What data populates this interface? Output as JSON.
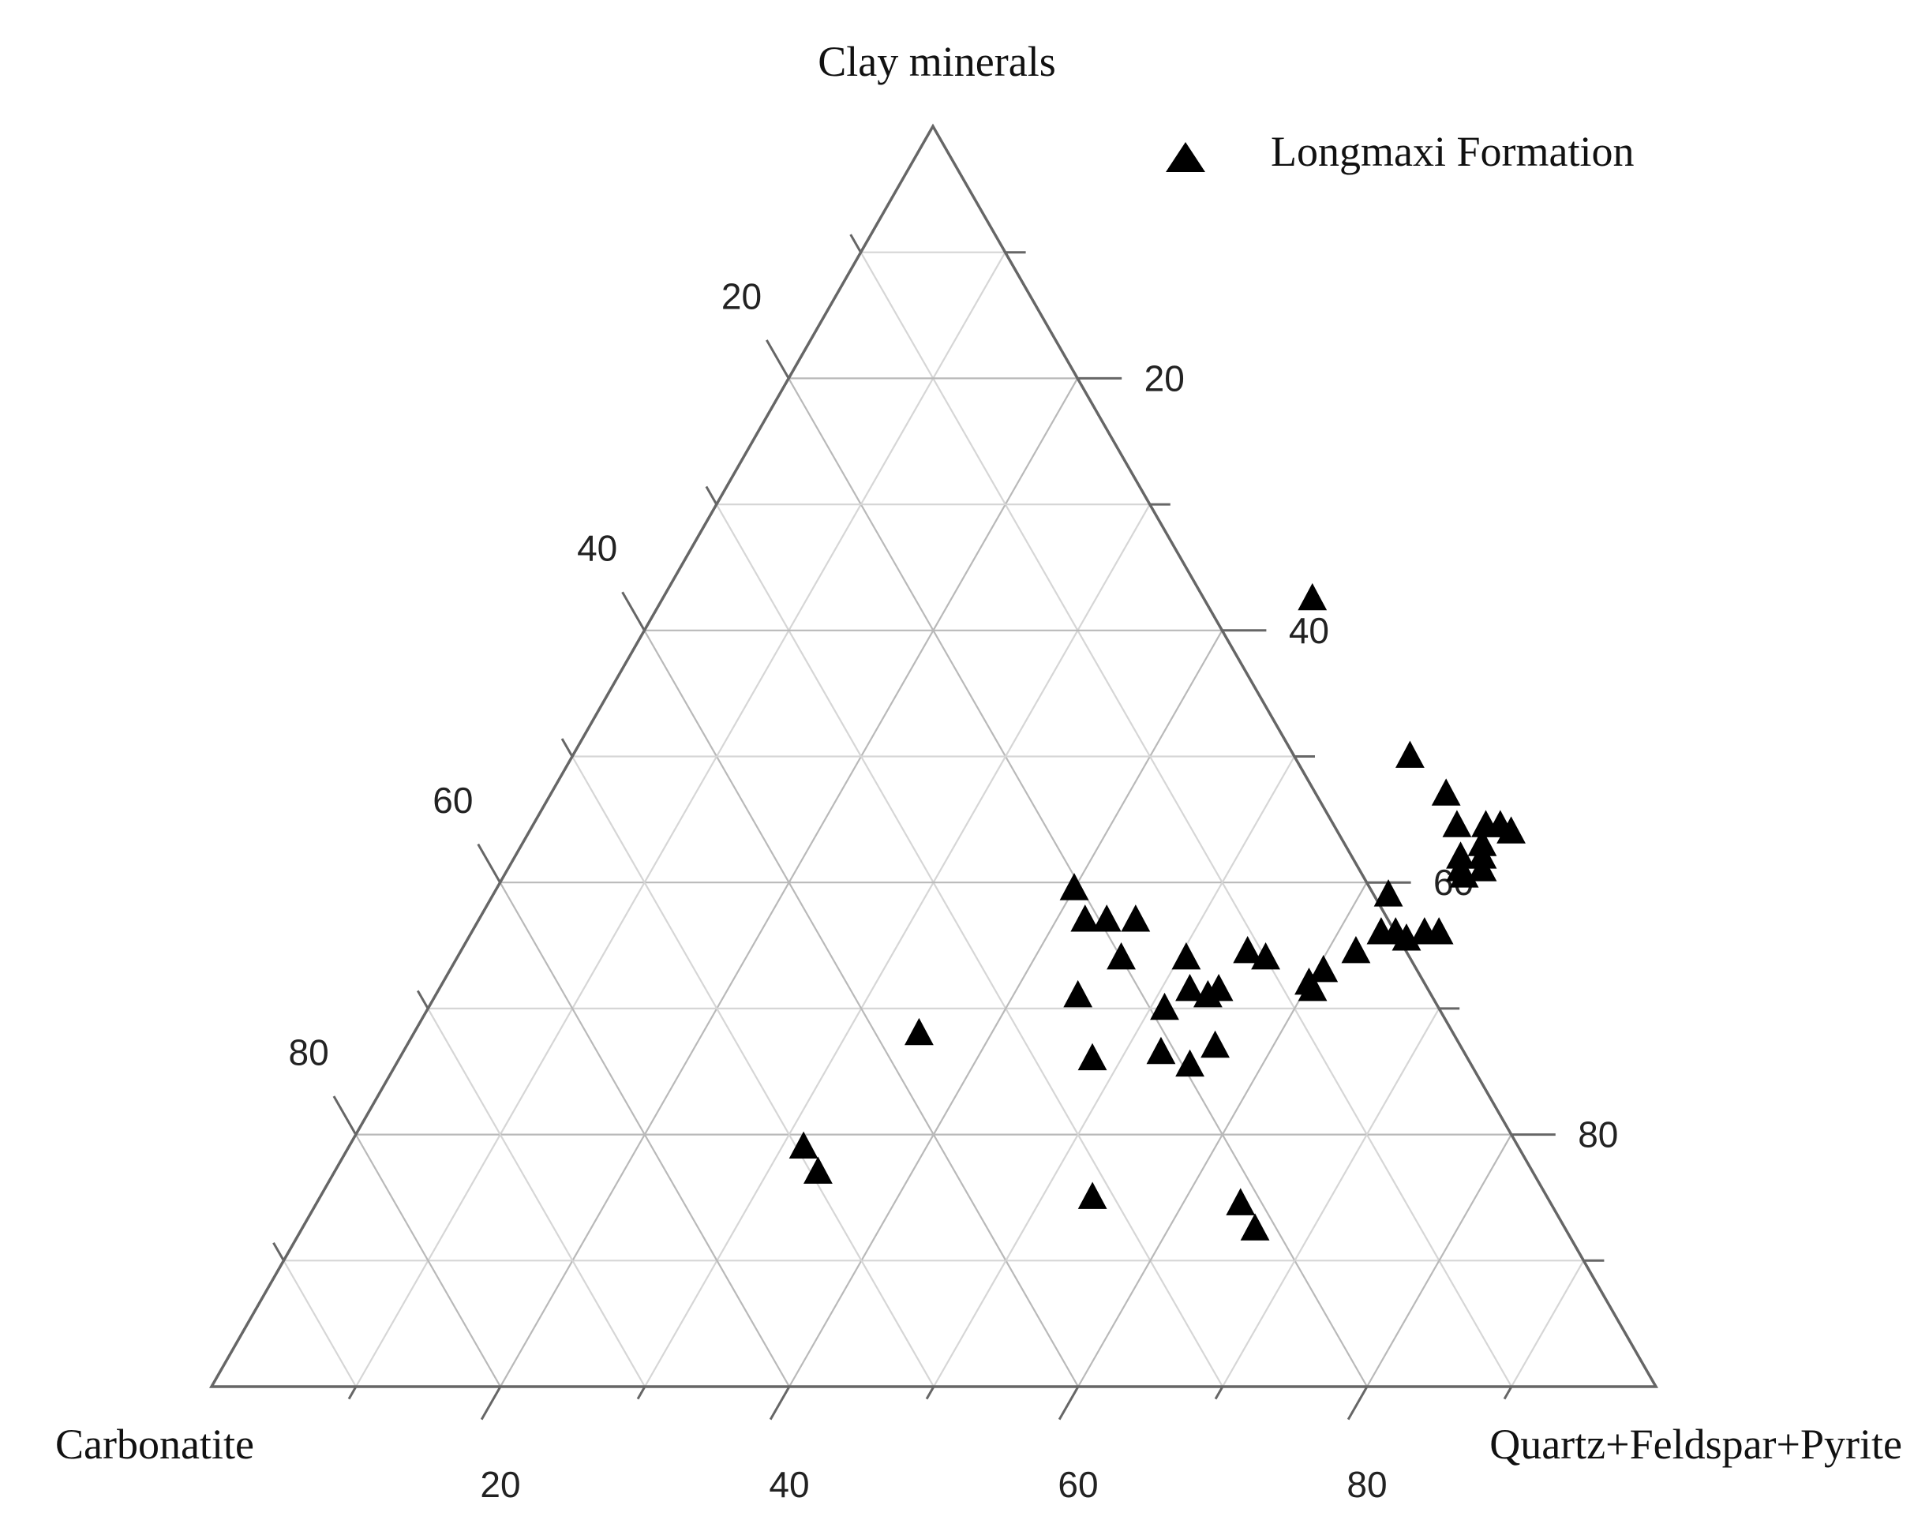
{
  "chart_data": {
    "type": "scatter",
    "subtype": "ternary",
    "axes": {
      "top": {
        "label": "Clay minerals",
        "ticks": [
          "20",
          "40",
          "60",
          "80"
        ]
      },
      "left": {
        "label": "Carbonatite",
        "ticks": [
          "20",
          "40",
          "60",
          "80"
        ]
      },
      "right": {
        "label": "Quartz+Feldspar+Pyrite",
        "ticks": [
          "20",
          "40",
          "60",
          "80"
        ]
      },
      "range": [
        0,
        100
      ],
      "grid": true,
      "grid_step": 10
    },
    "legend": {
      "position": "top-right",
      "entries": [
        "Longmaxi Formation"
      ]
    },
    "series": [
      {
        "name": "Longmaxi Formation",
        "marker": "triangle",
        "color": "#000000",
        "points": [
          {
            "clay": 62.5,
            "quartz_feldspar_pyrite": 45.0,
            "carbonatite": -7.5
          },
          {
            "clay": 50.0,
            "quartz_feldspar_pyrite": 58.0,
            "carbonatite": -8.0
          },
          {
            "clay": 47.0,
            "quartz_feldspar_pyrite": 62.0,
            "carbonatite": -9.0
          },
          {
            "clay": 44.5,
            "quartz_feldspar_pyrite": 64.0,
            "carbonatite": -8.5
          },
          {
            "clay": 44.5,
            "quartz_feldspar_pyrite": 66.0,
            "carbonatite": -10.5
          },
          {
            "clay": 44.5,
            "quartz_feldspar_pyrite": 67.0,
            "carbonatite": -11.5
          },
          {
            "clay": 44.0,
            "quartz_feldspar_pyrite": 68.0,
            "carbonatite": -12.0
          },
          {
            "clay": 43.0,
            "quartz_feldspar_pyrite": 66.5,
            "carbonatite": -9.5
          },
          {
            "clay": 42.0,
            "quartz_feldspar_pyrite": 65.5,
            "carbonatite": -7.5
          },
          {
            "clay": 42.0,
            "quartz_feldspar_pyrite": 67.0,
            "carbonatite": -9.0
          },
          {
            "clay": 41.0,
            "quartz_feldspar_pyrite": 66.0,
            "carbonatite": -7.0
          },
          {
            "clay": 41.0,
            "quartz_feldspar_pyrite": 67.5,
            "carbonatite": -8.5
          },
          {
            "clay": 40.5,
            "quartz_feldspar_pyrite": 66.5,
            "carbonatite": -7.0
          },
          {
            "clay": 39.0,
            "quartz_feldspar_pyrite": 62.0,
            "carbonatite": -1.0
          },
          {
            "clay": 36.0,
            "quartz_feldspar_pyrite": 63.0,
            "carbonatite": 1.0
          },
          {
            "clay": 36.0,
            "quartz_feldspar_pyrite": 64.0,
            "carbonatite": 0.0
          },
          {
            "clay": 35.5,
            "quartz_feldspar_pyrite": 65.0,
            "carbonatite": -0.5
          },
          {
            "clay": 36.0,
            "quartz_feldspar_pyrite": 66.0,
            "carbonatite": -2.0
          },
          {
            "clay": 36.0,
            "quartz_feldspar_pyrite": 67.0,
            "carbonatite": -3.0
          },
          {
            "clay": 34.5,
            "quartz_feldspar_pyrite": 62.0,
            "carbonatite": 3.5
          },
          {
            "clay": 33.0,
            "quartz_feldspar_pyrite": 60.5,
            "carbonatite": 6.5
          },
          {
            "clay": 32.0,
            "quartz_feldspar_pyrite": 60.0,
            "carbonatite": 8.0
          },
          {
            "clay": 31.5,
            "quartz_feldspar_pyrite": 60.5,
            "carbonatite": 8.0
          },
          {
            "clay": 27.0,
            "quartz_feldspar_pyrite": 56.0,
            "carbonatite": 17.0
          },
          {
            "clay": 39.5,
            "quartz_feldspar_pyrite": 40.0,
            "carbonatite": 20.5
          },
          {
            "clay": 37.0,
            "quartz_feldspar_pyrite": 42.0,
            "carbonatite": 21.0
          },
          {
            "clay": 37.0,
            "quartz_feldspar_pyrite": 43.5,
            "carbonatite": 19.5
          },
          {
            "clay": 37.0,
            "quartz_feldspar_pyrite": 45.5,
            "carbonatite": 17.5
          },
          {
            "clay": 34.0,
            "quartz_feldspar_pyrite": 46.0,
            "carbonatite": 20.0
          },
          {
            "clay": 31.0,
            "quartz_feldspar_pyrite": 44.5,
            "carbonatite": 24.5
          },
          {
            "clay": 34.0,
            "quartz_feldspar_pyrite": 50.5,
            "carbonatite": 15.5
          },
          {
            "clay": 34.5,
            "quartz_feldspar_pyrite": 54.5,
            "carbonatite": 11.0
          },
          {
            "clay": 34.0,
            "quartz_feldspar_pyrite": 56.0,
            "carbonatite": 10.0
          },
          {
            "clay": 31.5,
            "quartz_feldspar_pyrite": 52.0,
            "carbonatite": 16.5
          },
          {
            "clay": 31.5,
            "quartz_feldspar_pyrite": 54.0,
            "carbonatite": 14.5
          },
          {
            "clay": 31.0,
            "quartz_feldspar_pyrite": 53.5,
            "carbonatite": 15.5
          },
          {
            "clay": 30.0,
            "quartz_feldspar_pyrite": 51.0,
            "carbonatite": 19.0
          },
          {
            "clay": 26.0,
            "quartz_feldspar_pyrite": 48.0,
            "carbonatite": 26.0
          },
          {
            "clay": 26.5,
            "quartz_feldspar_pyrite": 52.5,
            "carbonatite": 21.0
          },
          {
            "clay": 25.5,
            "quartz_feldspar_pyrite": 55.0,
            "carbonatite": 19.5
          },
          {
            "clay": 28.0,
            "quartz_feldspar_pyrite": 35.0,
            "carbonatite": 37.0
          },
          {
            "clay": 19.0,
            "quartz_feldspar_pyrite": 31.5,
            "carbonatite": 49.5
          },
          {
            "clay": 17.0,
            "quartz_feldspar_pyrite": 33.5,
            "carbonatite": 49.5
          },
          {
            "clay": 15.0,
            "quartz_feldspar_pyrite": 53.5,
            "carbonatite": 31.5
          },
          {
            "clay": 14.5,
            "quartz_feldspar_pyrite": 64.0,
            "carbonatite": 21.5
          },
          {
            "clay": 12.5,
            "quartz_feldspar_pyrite": 66.0,
            "carbonatite": 21.5
          }
        ]
      }
    ]
  }
}
